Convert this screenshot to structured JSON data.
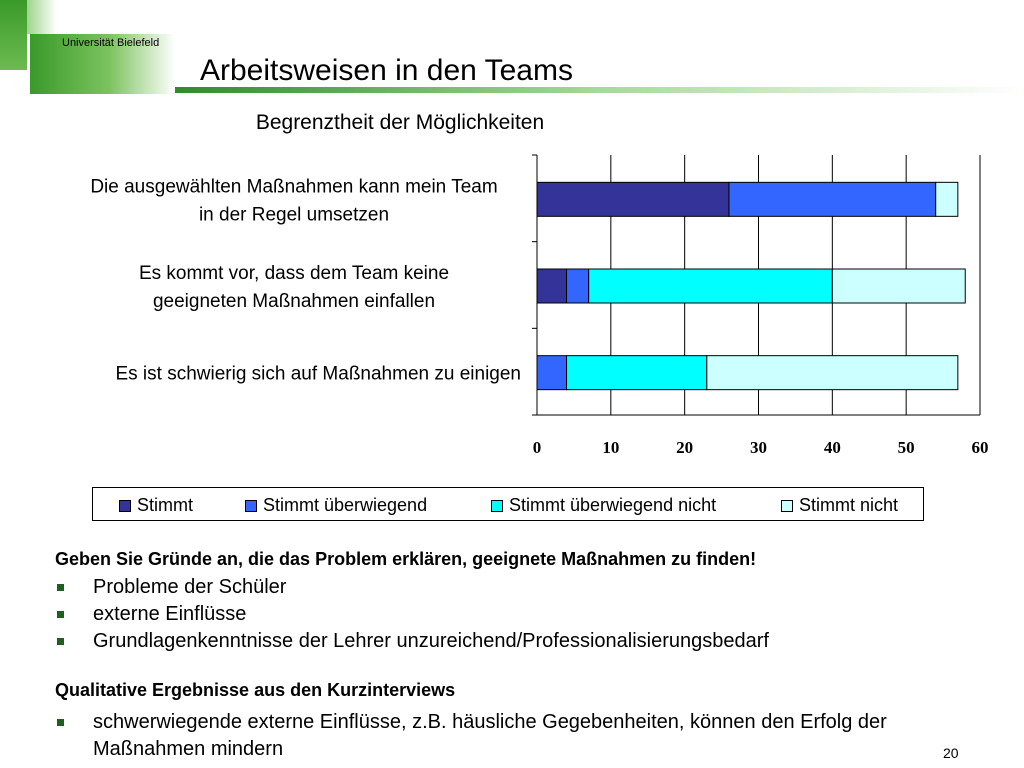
{
  "header": {
    "logo_text": "Universität Bielefeld",
    "title": "Arbeitsweisen in den Teams"
  },
  "colors": {
    "stimmt": "#333399",
    "stimmt_ueberwiegend": "#3366FF",
    "stimmt_ueberwiegend_nicht": "#00FFFF",
    "stimmt_nicht": "#CCFFFF",
    "accent_green": "#3a9a2a"
  },
  "chart_data": {
    "type": "bar",
    "orientation": "horizontal",
    "stacked": true,
    "title": "Begrenztheit der Möglichkeiten",
    "categories": [
      [
        "Die ausgewählten Maßnahmen kann mein Team",
        "in der Regel umsetzen"
      ],
      [
        "Es kommt vor, dass dem Team keine",
        "geeigneten Maßnahmen einfallen"
      ],
      [
        "Es ist schwierig sich auf Maßnahmen zu einigen"
      ]
    ],
    "series": [
      {
        "name": "Stimmt",
        "color": "#333399",
        "values": [
          26,
          4,
          0
        ]
      },
      {
        "name": "Stimmt überwiegend",
        "color": "#3366FF",
        "values": [
          28,
          3,
          4
        ]
      },
      {
        "name": "Stimmt überwiegend nicht",
        "color": "#00FFFF",
        "values": [
          0,
          33,
          19
        ]
      },
      {
        "name": "Stimmt nicht",
        "color": "#CCFFFF",
        "values": [
          3,
          18,
          34
        ]
      }
    ],
    "xlim": [
      0,
      60
    ],
    "xticks": [
      "0",
      "10",
      "20",
      "30",
      "40",
      "50",
      "60"
    ],
    "grid": true,
    "legend_position": "bottom"
  },
  "questions": {
    "heading": "Geben Sie Gründe an, die das Problem erklären, geeignete Maßnahmen zu finden!",
    "items": [
      "Probleme der Schüler",
      "externe Einflüsse",
      "Grundlagenkenntnisse der Lehrer unzureichend/Professionalisierungsbedarf"
    ]
  },
  "qualitative": {
    "heading": "Qualitative Ergebnisse aus den Kurzinterviews",
    "items": [
      "schwerwiegende externe Einflüsse, z.B. häusliche Gegebenheiten, können den Erfolg der Maßnahmen mindern"
    ]
  },
  "page_number": "20"
}
